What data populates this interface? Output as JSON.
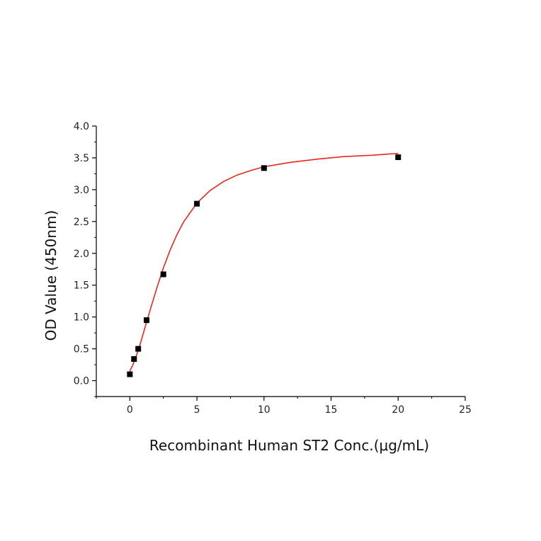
{
  "chart_data": {
    "type": "scatter",
    "title": "",
    "xlabel": "Recombinant Human ST2 Conc.(μg/mL)",
    "ylabel": "OD Value (450nm)",
    "xlim": [
      -2.5,
      25
    ],
    "ylim": [
      -0.25,
      4.0
    ],
    "x_ticks": [
      0,
      5,
      10,
      15,
      20,
      25
    ],
    "x_tick_labels": [
      "0",
      "5",
      "10",
      "15",
      "20",
      "25"
    ],
    "y_ticks": [
      0.0,
      0.5,
      1.0,
      1.5,
      2.0,
      2.5,
      3.0,
      3.5,
      4.0
    ],
    "y_tick_labels": [
      "0.0",
      "0.5",
      "1.0",
      "1.5",
      "2.0",
      "2.5",
      "3.0",
      "3.5",
      "4.0"
    ],
    "grid": false,
    "series": [
      {
        "type": "scatter",
        "marker": "square",
        "color": "#000000",
        "x": [
          0,
          0.3125,
          0.625,
          1.25,
          2.5,
          5,
          10,
          20
        ],
        "y": [
          0.1,
          0.34,
          0.5,
          0.95,
          1.67,
          2.78,
          3.34,
          3.51
        ]
      },
      {
        "type": "line",
        "color": "#e8281e",
        "x": [
          0.0,
          0.25,
          0.5,
          0.75,
          1.0,
          1.25,
          1.5,
          2.0,
          2.5,
          3.0,
          3.5,
          4.0,
          5.0,
          6.0,
          7.0,
          8.0,
          9.0,
          10.0,
          12.0,
          14.0,
          16.0,
          18.0,
          20.0
        ],
        "y": [
          0.15,
          0.26,
          0.4,
          0.56,
          0.74,
          0.92,
          1.1,
          1.45,
          1.77,
          2.05,
          2.29,
          2.49,
          2.79,
          2.99,
          3.13,
          3.23,
          3.3,
          3.36,
          3.43,
          3.48,
          3.52,
          3.54,
          3.57
        ]
      }
    ]
  }
}
